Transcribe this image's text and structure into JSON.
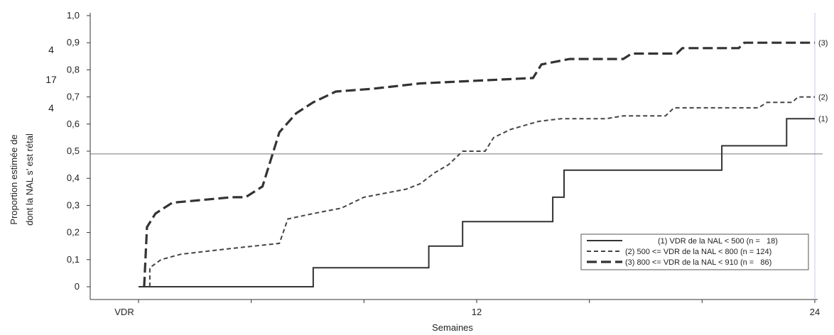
{
  "chart_data": {
    "type": "line",
    "title": "",
    "xlabel": "Semaines",
    "ylabel_lines": [
      "Proportion estimée de",
      "dont la NAL s’ est rétal"
    ],
    "xlim": [
      0,
      24
    ],
    "ylim": [
      0,
      1.0
    ],
    "x_ticks": [
      {
        "value": 0,
        "label": "VDR"
      },
      {
        "value": 12,
        "label": "12"
      },
      {
        "value": 24,
        "label": "24"
      }
    ],
    "y_ticks": [
      {
        "value": 0,
        "label": "0"
      },
      {
        "value": 0.1,
        "label": "0,1"
      },
      {
        "value": 0.2,
        "label": "0,2"
      },
      {
        "value": 0.3,
        "label": "0,3"
      },
      {
        "value": 0.4,
        "label": "0,4"
      },
      {
        "value": 0.5,
        "label": "0,5"
      },
      {
        "value": 0.6,
        "label": "0,6"
      },
      {
        "value": 0.7,
        "label": "0,7"
      },
      {
        "value": 0.8,
        "label": "0,8"
      },
      {
        "value": 0.9,
        "label": "0,9"
      },
      {
        "value": 1.0,
        "label": "1,0"
      }
    ],
    "reference_line": 0.49,
    "side_numbers": [
      "4",
      "17",
      "4"
    ],
    "grid": false,
    "legend_position": "bottom-right",
    "series": [
      {
        "name": "(1) VDR de la NAL < 500 (n =   18)",
        "end_label": "(1)",
        "style": "solid",
        "color": "#333333",
        "points": [
          [
            0.0,
            0.0
          ],
          [
            6.2,
            0.0
          ],
          [
            6.2,
            0.07
          ],
          [
            10.3,
            0.07
          ],
          [
            10.3,
            0.15
          ],
          [
            11.5,
            0.15
          ],
          [
            11.5,
            0.24
          ],
          [
            14.7,
            0.24
          ],
          [
            14.7,
            0.33
          ],
          [
            15.1,
            0.33
          ],
          [
            15.1,
            0.43
          ],
          [
            20.7,
            0.43
          ],
          [
            20.7,
            0.52
          ],
          [
            23.0,
            0.52
          ],
          [
            23.0,
            0.62
          ],
          [
            24.0,
            0.62
          ]
        ]
      },
      {
        "name": "(2) 500 <= VDR de la NAL < 800 (n = 124)",
        "end_label": "(2)",
        "style": "dotted",
        "color": "#444444",
        "points": [
          [
            0.4,
            0.0
          ],
          [
            0.4,
            0.07
          ],
          [
            0.8,
            0.1
          ],
          [
            1.5,
            0.12
          ],
          [
            3.2,
            0.14
          ],
          [
            5.0,
            0.16
          ],
          [
            5.3,
            0.25
          ],
          [
            6.2,
            0.27
          ],
          [
            7.2,
            0.29
          ],
          [
            8.0,
            0.33
          ],
          [
            9.0,
            0.35
          ],
          [
            9.5,
            0.36
          ],
          [
            10.0,
            0.38
          ],
          [
            10.5,
            0.42
          ],
          [
            11.0,
            0.45
          ],
          [
            11.5,
            0.5
          ],
          [
            12.3,
            0.5
          ],
          [
            12.6,
            0.55
          ],
          [
            13.2,
            0.58
          ],
          [
            14.2,
            0.61
          ],
          [
            15.0,
            0.62
          ],
          [
            16.6,
            0.62
          ],
          [
            17.2,
            0.63
          ],
          [
            18.7,
            0.63
          ],
          [
            19.0,
            0.66
          ],
          [
            20.7,
            0.66
          ],
          [
            22.0,
            0.66
          ],
          [
            22.3,
            0.68
          ],
          [
            23.2,
            0.68
          ],
          [
            23.4,
            0.7
          ],
          [
            24.0,
            0.7
          ]
        ]
      },
      {
        "name": "(3) 800 <= VDR de la NAL < 910 (n =   86)",
        "end_label": "(3)",
        "style": "dashed",
        "color": "#333333",
        "points": [
          [
            0.2,
            0.0
          ],
          [
            0.3,
            0.22
          ],
          [
            0.6,
            0.27
          ],
          [
            1.2,
            0.31
          ],
          [
            3.3,
            0.33
          ],
          [
            3.8,
            0.33
          ],
          [
            4.4,
            0.37
          ],
          [
            4.7,
            0.47
          ],
          [
            5.0,
            0.57
          ],
          [
            5.6,
            0.64
          ],
          [
            6.2,
            0.68
          ],
          [
            7.0,
            0.72
          ],
          [
            8.3,
            0.73
          ],
          [
            10.0,
            0.75
          ],
          [
            14.0,
            0.77
          ],
          [
            14.3,
            0.82
          ],
          [
            15.3,
            0.84
          ],
          [
            17.2,
            0.84
          ],
          [
            17.5,
            0.86
          ],
          [
            19.1,
            0.86
          ],
          [
            19.3,
            0.88
          ],
          [
            21.3,
            0.88
          ],
          [
            21.5,
            0.9
          ],
          [
            24.0,
            0.9
          ]
        ]
      }
    ]
  }
}
